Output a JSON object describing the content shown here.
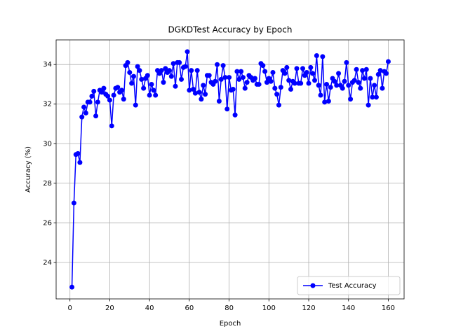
{
  "chart_data": {
    "type": "line",
    "title": "DGKDTest Accuracy by Epoch",
    "x_label": "Epoch",
    "y_label": "Accuracy (%)",
    "x": [
      1,
      2,
      3,
      4,
      5,
      6,
      7,
      8,
      9,
      10,
      11,
      12,
      13,
      14,
      15,
      16,
      17,
      18,
      19,
      20,
      21,
      22,
      23,
      24,
      25,
      26,
      27,
      28,
      29,
      30,
      31,
      32,
      33,
      34,
      35,
      36,
      37,
      38,
      39,
      40,
      41,
      42,
      43,
      44,
      45,
      46,
      47,
      48,
      49,
      50,
      51,
      52,
      53,
      54,
      55,
      56,
      57,
      58,
      59,
      60,
      61,
      62,
      63,
      64,
      65,
      66,
      67,
      68,
      69,
      70,
      71,
      72,
      73,
      74,
      75,
      76,
      77,
      78,
      79,
      80,
      81,
      82,
      83,
      84,
      85,
      86,
      87,
      88,
      89,
      90,
      91,
      92,
      93,
      94,
      95,
      96,
      97,
      98,
      99,
      100,
      101,
      102,
      103,
      104,
      105,
      106,
      107,
      108,
      109,
      110,
      111,
      112,
      113,
      114,
      115,
      116,
      117,
      118,
      119,
      120,
      121,
      122,
      123,
      124,
      125,
      126,
      127,
      128,
      129,
      130,
      131,
      132,
      133,
      134,
      135,
      136,
      137,
      138,
      139,
      140,
      141,
      142,
      143,
      144,
      145,
      146,
      147,
      148,
      149,
      150,
      151,
      152,
      153,
      154,
      155,
      156,
      157,
      158,
      159,
      160
    ],
    "series": [
      {
        "name": "Test Accuracy",
        "color": "#0000ff",
        "values": [
          22.75,
          27.0,
          29.45,
          29.5,
          29.05,
          31.35,
          31.85,
          31.55,
          32.1,
          32.1,
          32.4,
          32.65,
          31.4,
          32.1,
          32.7,
          32.6,
          32.8,
          32.5,
          32.4,
          32.2,
          30.9,
          32.45,
          32.8,
          32.85,
          32.6,
          32.7,
          32.25,
          33.95,
          34.1,
          33.6,
          33.05,
          33.4,
          31.95,
          33.9,
          33.7,
          33.25,
          32.8,
          33.3,
          33.45,
          32.45,
          33.0,
          32.7,
          32.45,
          33.7,
          33.55,
          33.7,
          33.1,
          33.8,
          33.6,
          33.7,
          33.4,
          34.05,
          32.9,
          34.1,
          34.1,
          33.25,
          33.85,
          33.9,
          34.65,
          32.7,
          33.7,
          32.75,
          32.55,
          33.7,
          32.6,
          32.25,
          32.95,
          32.5,
          33.45,
          33.45,
          33.1,
          33.0,
          33.15,
          34.0,
          32.15,
          33.25,
          33.95,
          33.35,
          31.75,
          33.35,
          32.7,
          32.75,
          31.45,
          33.65,
          33.25,
          33.65,
          33.35,
          32.8,
          33.1,
          33.45,
          33.35,
          33.2,
          33.3,
          33.0,
          33.0,
          34.05,
          33.95,
          33.65,
          33.1,
          33.3,
          33.15,
          33.6,
          32.8,
          32.5,
          31.95,
          32.85,
          33.7,
          33.55,
          33.85,
          33.2,
          32.75,
          33.15,
          33.05,
          33.8,
          33.05,
          33.05,
          33.8,
          33.45,
          33.6,
          33.05,
          33.85,
          33.55,
          33.2,
          34.45,
          32.95,
          32.45,
          34.4,
          32.1,
          33.0,
          32.15,
          32.85,
          33.3,
          33.15,
          32.95,
          33.55,
          32.95,
          32.8,
          33.15,
          34.1,
          32.95,
          32.25,
          33.1,
          33.2,
          33.75,
          33.1,
          32.8,
          33.7,
          33.3,
          33.75,
          31.95,
          33.3,
          32.35,
          32.95,
          32.35,
          33.5,
          33.7,
          32.8,
          33.65,
          33.55,
          34.15
        ]
      }
    ],
    "xlim": [
      -6.95,
      167.95
    ],
    "ylim": [
      22.155,
      35.245
    ],
    "xticks": [
      0,
      20,
      40,
      60,
      80,
      100,
      120,
      140,
      160
    ],
    "yticks": [
      24,
      26,
      28,
      30,
      32,
      34
    ],
    "grid": true,
    "legend": "lower right"
  }
}
